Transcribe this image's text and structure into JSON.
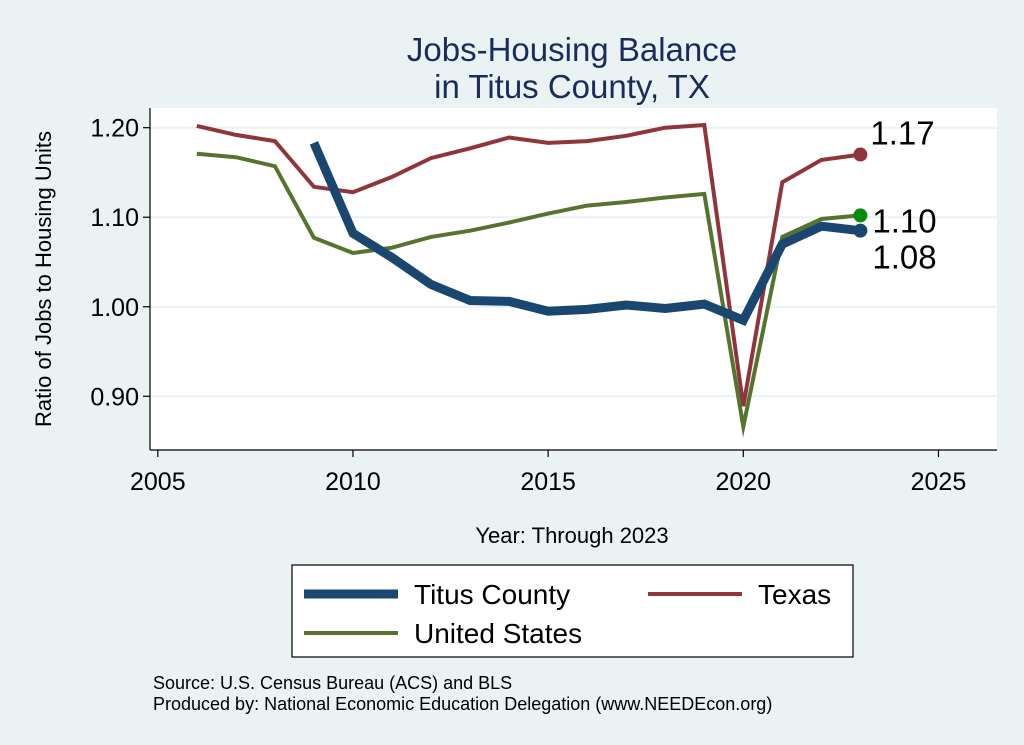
{
  "chart_data": {
    "type": "line",
    "title": [
      "Jobs-Housing Balance",
      "in Titus County, TX"
    ],
    "xlabel": "Year: Through 2023",
    "ylabel": "Ratio of Jobs to Housing Units",
    "xlim": [
      2004.8,
      2026.5
    ],
    "ylim": [
      0.84,
      1.222
    ],
    "xticks": [
      2005,
      2010,
      2015,
      2020,
      2025
    ],
    "yticks": [
      0.9,
      1.0,
      1.1,
      1.2
    ],
    "ytick_labels": [
      "0.90",
      "1.00",
      "1.10",
      "1.20"
    ],
    "grid": "horizontal",
    "legend_position": "bottom",
    "series": [
      {
        "name": "Titus County",
        "color": "#1a476f",
        "end_label": "1.08",
        "x": [
          2009,
          2010,
          2011,
          2012,
          2013,
          2014,
          2015,
          2016,
          2017,
          2018,
          2019,
          2020,
          2021,
          2022,
          2023
        ],
        "y": [
          1.183,
          1.082,
          1.055,
          1.025,
          1.007,
          1.006,
          0.995,
          0.997,
          1.002,
          0.998,
          1.003,
          0.985,
          1.07,
          1.09,
          1.085
        ]
      },
      {
        "name": "Texas",
        "color": "#90353b",
        "end_label": "1.17",
        "x": [
          2006,
          2007,
          2008,
          2009,
          2010,
          2011,
          2012,
          2013,
          2014,
          2015,
          2016,
          2017,
          2018,
          2019,
          2020,
          2021,
          2022,
          2023
        ],
        "y": [
          1.202,
          1.192,
          1.185,
          1.134,
          1.128,
          1.145,
          1.166,
          1.177,
          1.189,
          1.183,
          1.185,
          1.191,
          1.2,
          1.203,
          0.889,
          1.139,
          1.164,
          1.17
        ]
      },
      {
        "name": "United States",
        "color": "#55752f",
        "end_label": "1.10",
        "end_marker_color": "#0a8a0a",
        "x": [
          2006,
          2007,
          2008,
          2009,
          2010,
          2011,
          2012,
          2013,
          2014,
          2015,
          2016,
          2017,
          2018,
          2019,
          2020,
          2021,
          2022,
          2023
        ],
        "y": [
          1.171,
          1.167,
          1.157,
          1.077,
          1.06,
          1.066,
          1.078,
          1.085,
          1.094,
          1.104,
          1.113,
          1.117,
          1.122,
          1.126,
          0.866,
          1.078,
          1.098,
          1.102
        ]
      }
    ]
  },
  "source_lines": [
    "Source: U.S. Census Bureau (ACS) and BLS",
    "Produced by: National Economic Education Delegation (www.NEEDEcon.org)"
  ]
}
